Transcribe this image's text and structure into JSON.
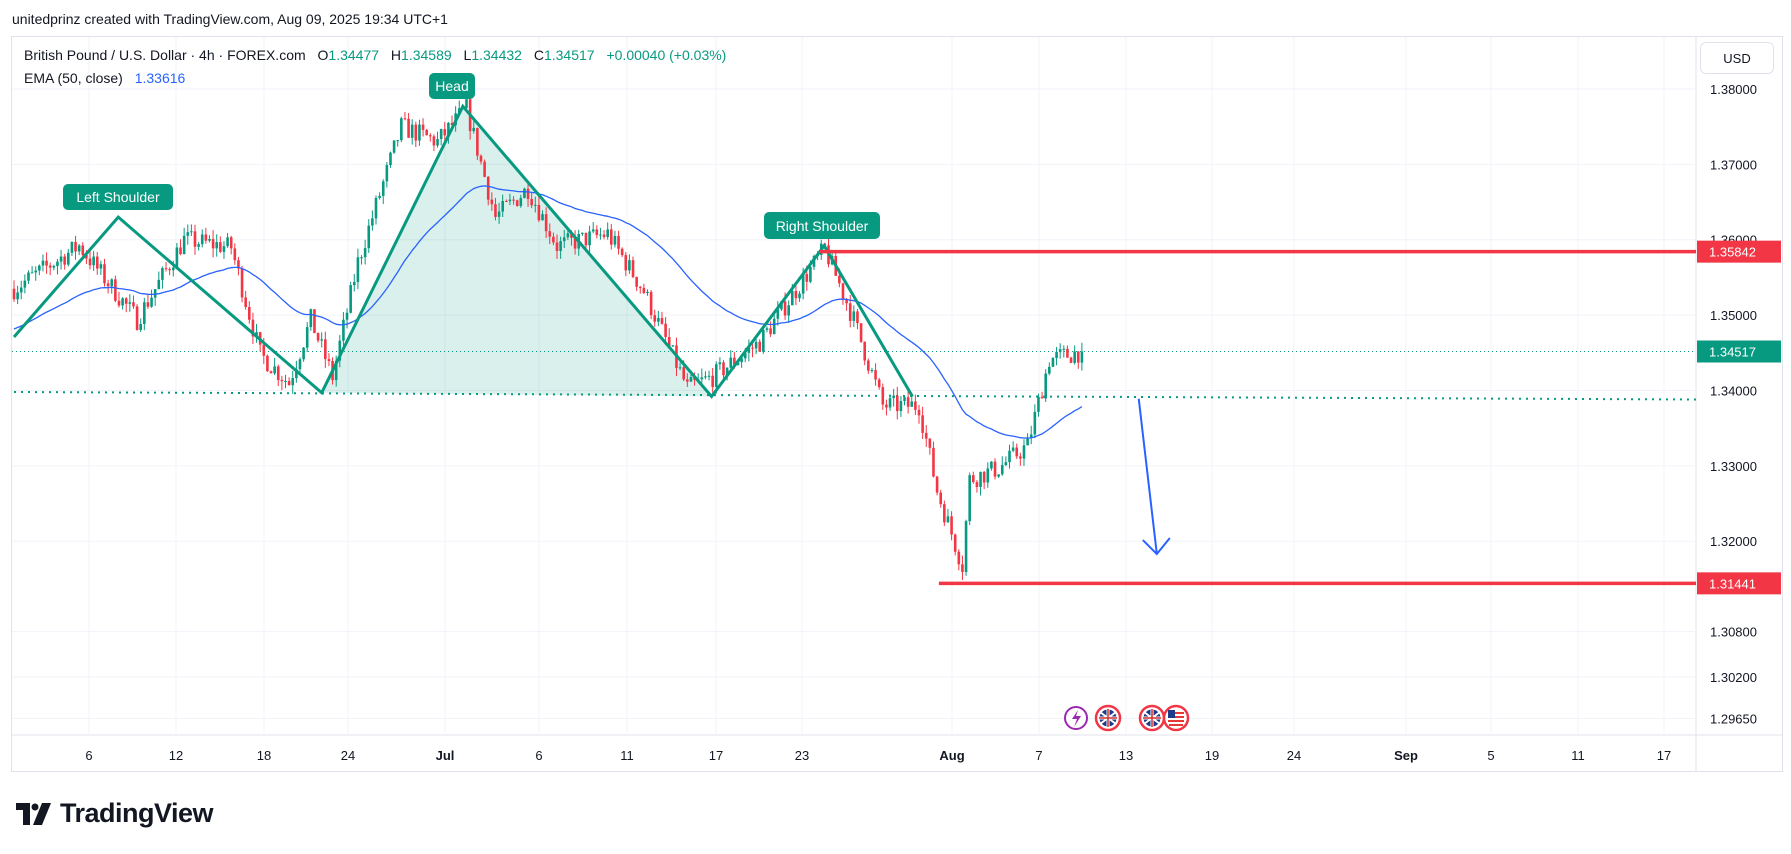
{
  "header": {
    "credit": "unitedprinz created with TradingView.com, Aug 09, 2025 19:34 UTC+1"
  },
  "legend": {
    "symbol": "British Pound / U.S. Dollar · 4h · FOREX.com",
    "open_label": "O",
    "open": "1.34477",
    "high_label": "H",
    "high": "1.34589",
    "low_label": "L",
    "low": "1.34432",
    "close_label": "C",
    "close": "1.34517",
    "change": "+0.00040 (+0.03%)",
    "ema_label": "EMA (50, close)",
    "ema_value": "1.33616"
  },
  "price_axis": {
    "currency": "USD",
    "ticks": [
      "1.38000",
      "1.37000",
      "1.36000",
      "1.35000",
      "1.34000",
      "1.33000",
      "1.32000",
      "1.30800",
      "1.30200",
      "1.29650"
    ],
    "badges": [
      {
        "value": "1.35842",
        "color": "#f23645"
      },
      {
        "value": "1.34517",
        "color": "#089981"
      },
      {
        "value": "1.31441",
        "color": "#f23645"
      }
    ]
  },
  "time_axis": {
    "ticks": [
      "6",
      "12",
      "18",
      "24",
      "Jul",
      "6",
      "11",
      "17",
      "23",
      "Aug",
      "7",
      "13",
      "19",
      "24",
      "Sep",
      "5",
      "11",
      "17"
    ]
  },
  "annotations": {
    "left_shoulder": "Left Shoulder",
    "head": "Head",
    "right_shoulder": "Right Shoulder"
  },
  "events": [
    "lightning-event-icon",
    "uk-flag-icon",
    "uk-flag-icon",
    "us-flag-icon"
  ],
  "logo": {
    "text": "TradingView"
  },
  "colors": {
    "up": "#089981",
    "down": "#f23645",
    "ema": "#2962ff",
    "pattern": "#089981",
    "arrow": "#2962ff"
  },
  "chart_data": {
    "type": "candlestick",
    "title": "British Pound / U.S. Dollar · 4h · FOREX.com",
    "ylabel": "USD",
    "ylim": [
      1.2965,
      1.38
    ],
    "candle_count": 296,
    "pivots": [
      [
        0,
        1.3535
      ],
      [
        18,
        1.3592
      ],
      [
        34,
        1.3494
      ],
      [
        47,
        1.36
      ],
      [
        60,
        1.359
      ],
      [
        68,
        1.3448
      ],
      [
        76,
        1.341
      ],
      [
        82,
        1.3494
      ],
      [
        88,
        1.3418
      ],
      [
        95,
        1.357
      ],
      [
        107,
        1.375
      ],
      [
        117,
        1.373
      ],
      [
        125,
        1.3774
      ],
      [
        133,
        1.363
      ],
      [
        142,
        1.3668
      ],
      [
        150,
        1.3592
      ],
      [
        164,
        1.3608
      ],
      [
        174,
        1.3532
      ],
      [
        186,
        1.3403
      ],
      [
        193,
        1.3418
      ],
      [
        206,
        1.3464
      ],
      [
        218,
        1.3547
      ],
      [
        224,
        1.3588
      ],
      [
        232,
        1.3494
      ],
      [
        240,
        1.338
      ],
      [
        250,
        1.338
      ],
      [
        255,
        1.3267
      ],
      [
        262,
        1.3168
      ],
      [
        264,
        1.3282
      ],
      [
        272,
        1.3297
      ],
      [
        280,
        1.3327
      ],
      [
        286,
        1.3441
      ],
      [
        295,
        1.3452
      ]
    ],
    "last_close": 1.34517,
    "ema": {
      "period": 50,
      "seed": 1.348,
      "last": 1.33616
    },
    "pattern": {
      "name": "Head and Shoulders",
      "points": [
        [
          0,
          1.3471
        ],
        [
          28.8,
          1.363
        ],
        [
          85,
          1.3397
        ],
        [
          124,
          1.3777
        ],
        [
          192.7,
          1.3392
        ],
        [
          223.8,
          1.3592
        ],
        [
          248.2,
          1.3392
        ]
      ],
      "shaded": [
        [
          85,
          1.3397
        ],
        [
          124,
          1.3777
        ],
        [
          192.7,
          1.3392
        ]
      ],
      "neckline": [
        [
          0,
          1.3398
        ],
        [
          467,
          1.3388
        ]
      ]
    },
    "levels": [
      {
        "price": 1.35842,
        "from_index": 222.5,
        "color": "#f23645"
      },
      {
        "price": 1.31441,
        "from_index": 255.5,
        "color": "#f23645"
      }
    ],
    "arrow": {
      "from": [
        310.7,
        1.3389
      ],
      "to": [
        315.7,
        1.3183
      ]
    }
  }
}
